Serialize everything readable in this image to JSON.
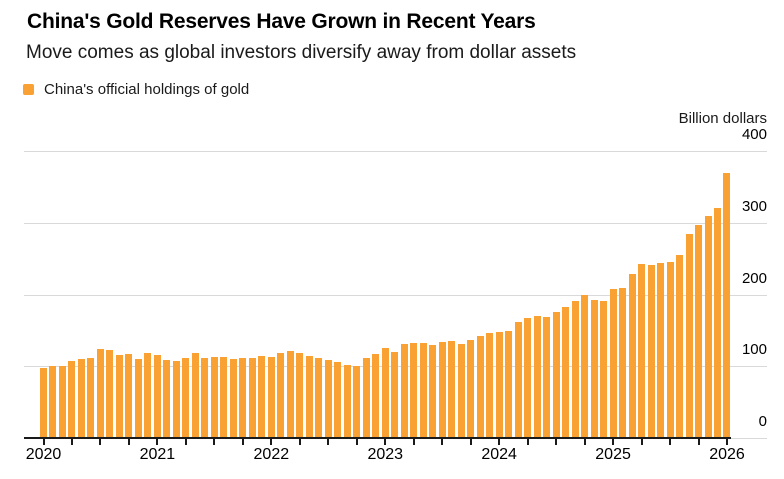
{
  "header": {
    "title": "China's Gold Reserves Have Grown in Recent Years",
    "subtitle": "Move comes as global investors diversify away from dollar assets"
  },
  "legend": {
    "label": "China's official holdings of gold",
    "swatch_color": "#F9A233",
    "position": "top-left"
  },
  "axis": {
    "unit_label": "Billion dollars",
    "y_ticks": [
      400,
      300,
      200,
      100,
      0
    ],
    "x_year_labels": [
      "2020",
      "2021",
      "2022",
      "2023",
      "2024",
      "2025",
      "2026"
    ]
  },
  "colors": {
    "bar": "#F9A233",
    "grid": "#d9d9d9",
    "axis": "#1a1a1a",
    "title": "#000000",
    "text": "#1a1a1a",
    "background": "#ffffff"
  },
  "chart_data": {
    "type": "bar",
    "title": "China's Gold Reserves Have Grown in Recent Years",
    "subtitle": "Move comes as global investors diversify away from dollar assets",
    "series_name": "China's official holdings of gold",
    "xlabel": "",
    "ylabel": "Billion dollars",
    "ylim": [
      0,
      400
    ],
    "grid": "horizontal",
    "legend_position": "top-left",
    "frequency": "monthly",
    "x": [
      "2020-01",
      "2020-02",
      "2020-03",
      "2020-04",
      "2020-05",
      "2020-06",
      "2020-07",
      "2020-08",
      "2020-09",
      "2020-10",
      "2020-11",
      "2020-12",
      "2021-01",
      "2021-02",
      "2021-03",
      "2021-04",
      "2021-05",
      "2021-06",
      "2021-07",
      "2021-08",
      "2021-09",
      "2021-10",
      "2021-11",
      "2021-12",
      "2022-01",
      "2022-02",
      "2022-03",
      "2022-04",
      "2022-05",
      "2022-06",
      "2022-07",
      "2022-08",
      "2022-09",
      "2022-10",
      "2022-11",
      "2022-12",
      "2023-01",
      "2023-02",
      "2023-03",
      "2023-04",
      "2023-05",
      "2023-06",
      "2023-07",
      "2023-08",
      "2023-09",
      "2023-10",
      "2023-11",
      "2023-12",
      "2024-01",
      "2024-02",
      "2024-03",
      "2024-04",
      "2024-05",
      "2024-06",
      "2024-07",
      "2024-08",
      "2024-09",
      "2024-10",
      "2024-11",
      "2024-12",
      "2025-01",
      "2025-02",
      "2025-03",
      "2025-04",
      "2025-05",
      "2025-06",
      "2025-07",
      "2025-08",
      "2025-09",
      "2025-10",
      "2025-11",
      "2025-12",
      "2026-01"
    ],
    "values": [
      98,
      101,
      100,
      107,
      110,
      112,
      124,
      123,
      116,
      117,
      110,
      118,
      116,
      109,
      107,
      111,
      119,
      111,
      113,
      113,
      110,
      112,
      111,
      115,
      113,
      119,
      121,
      118,
      114,
      112,
      109,
      106,
      102,
      100,
      112,
      117,
      125,
      120,
      131,
      133,
      132,
      130,
      134,
      135,
      131,
      136,
      142,
      147,
      148,
      149,
      162,
      167,
      170,
      169,
      175,
      182,
      191,
      199,
      193,
      191,
      207,
      209,
      229,
      242,
      241,
      244,
      245,
      255,
      285,
      297,
      310,
      320,
      370
    ]
  }
}
